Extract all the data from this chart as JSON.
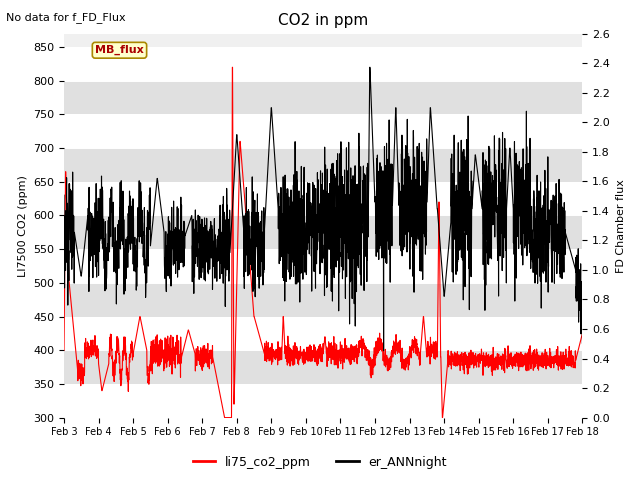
{
  "title": "CO2 in ppm",
  "top_left_text": "No data for f_FD_Flux",
  "ylabel_left": "LI7500 CO2 (ppm)",
  "ylabel_right": "FD Chamber flux",
  "ylim_left": [
    300,
    870
  ],
  "ylim_right": [
    0.0,
    2.6
  ],
  "yticks_left": [
    300,
    350,
    400,
    450,
    500,
    550,
    600,
    650,
    700,
    750,
    800,
    850
  ],
  "yticks_right": [
    0.0,
    0.2,
    0.4,
    0.6,
    0.8,
    1.0,
    1.2,
    1.4,
    1.6,
    1.8,
    2.0,
    2.2,
    2.4,
    2.6
  ],
  "xlim": [
    0,
    15
  ],
  "xtick_labels": [
    "Feb 3",
    "Feb 4",
    "Feb 5",
    "Feb 6",
    "Feb 7",
    "Feb 8",
    "Feb 9",
    "Feb 10",
    "Feb 11",
    "Feb 12",
    "Feb 13",
    "Feb 14",
    "Feb 15",
    "Feb 16",
    "Feb 17",
    "Feb 18"
  ],
  "color_red": "#ff0000",
  "color_black": "#000000",
  "legend_label_red": "li75_co2_ppm",
  "legend_label_black": "er_ANNnight",
  "mb_flux_label": "MB_flux",
  "mb_flux_bg": "#ffffcc",
  "mb_flux_border": "#aa8800",
  "mb_flux_text_color": "#aa0000",
  "linewidth_red": 0.8,
  "linewidth_black": 0.8,
  "plot_bg_light": "#f0f0f0",
  "plot_bg_dark": "#e0e0e0",
  "grid_color": "#ffffff"
}
